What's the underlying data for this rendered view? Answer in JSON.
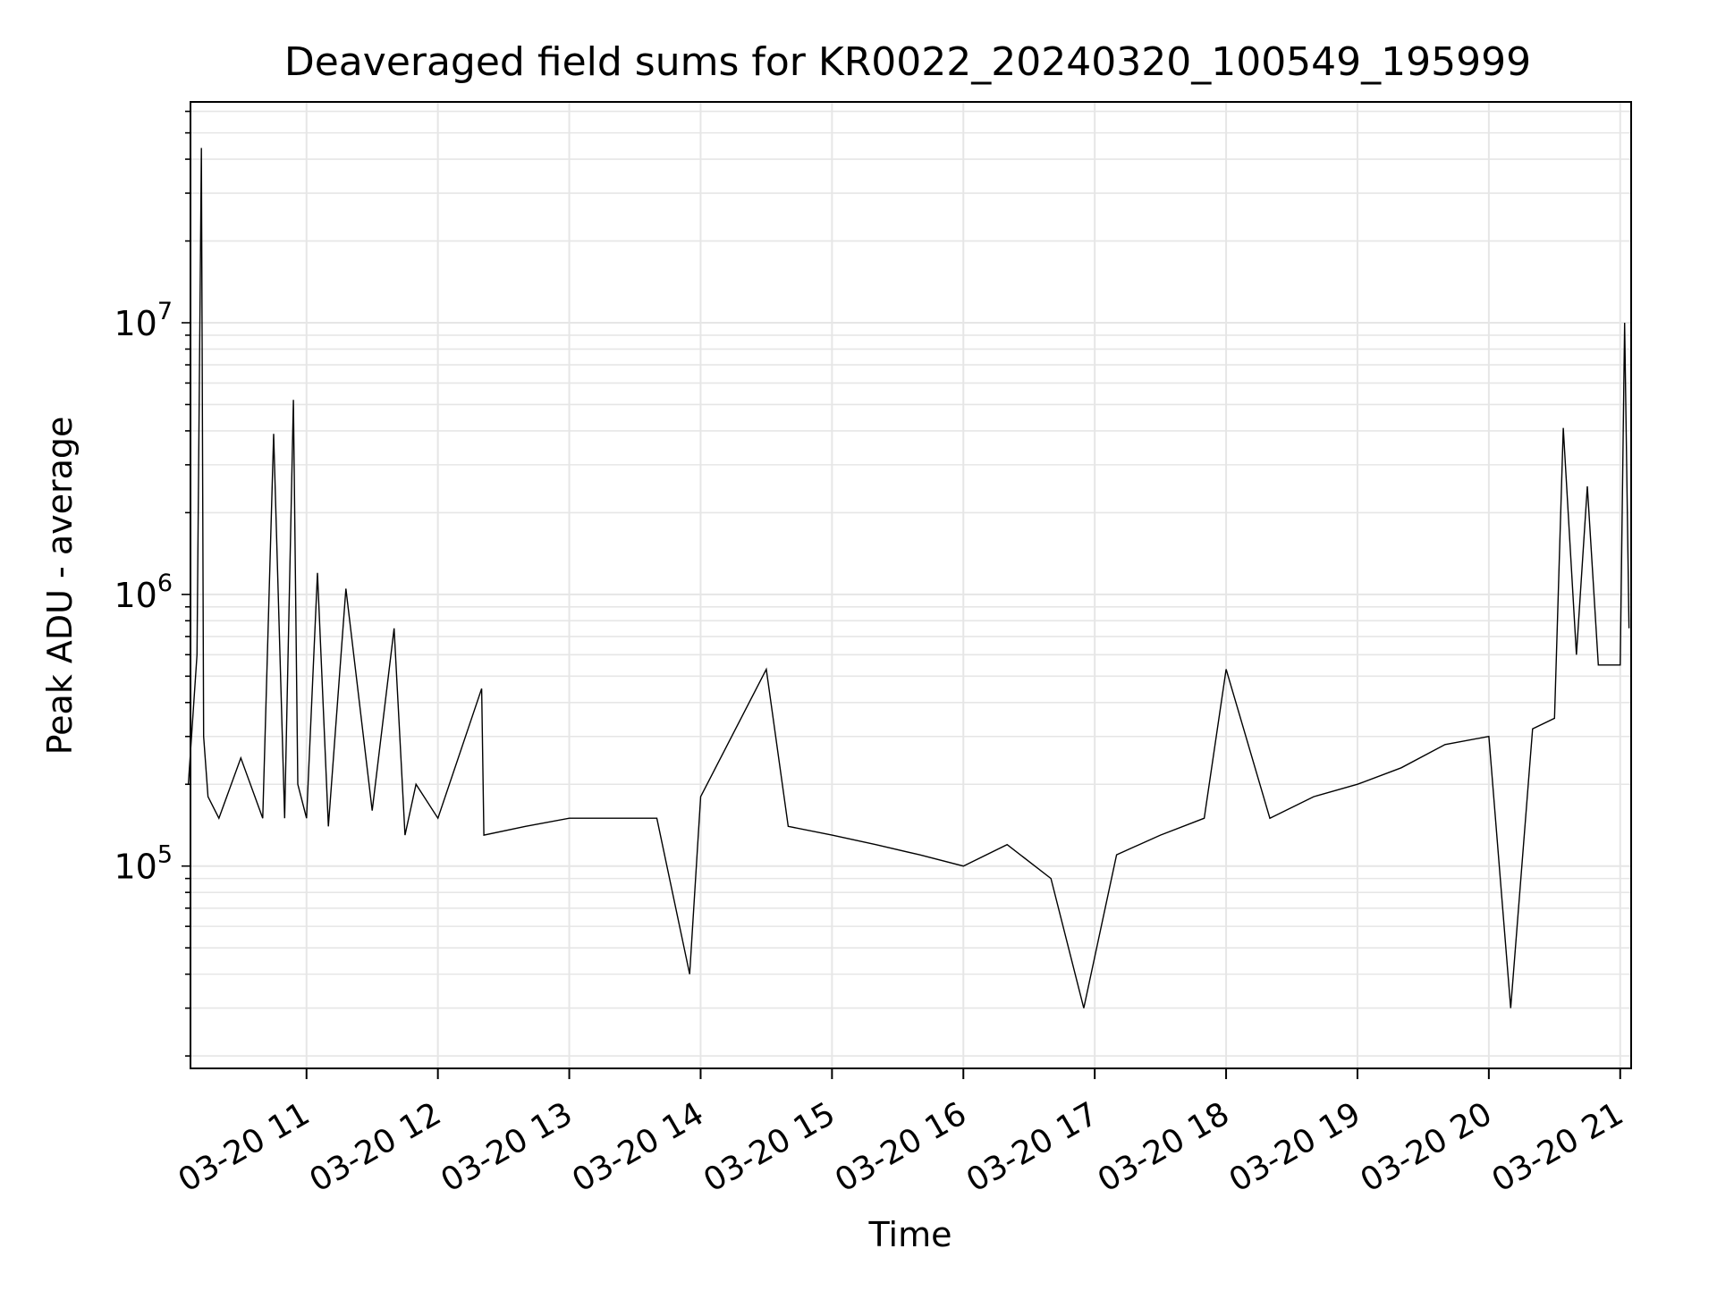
{
  "chart_data": {
    "type": "line",
    "title": "Deaveraged field sums for KR0022_20240320_100549_195999",
    "xlabel": "Time",
    "ylabel": "Peak ADU - average",
    "y_scale": "log",
    "xlim": [
      "2024-03-20T10:07",
      "2024-03-20T21:05"
    ],
    "ylim": [
      18000,
      65000000
    ],
    "x_tick_labels": [
      "03-20 11",
      "03-20 12",
      "03-20 13",
      "03-20 14",
      "03-20 15",
      "03-20 16",
      "03-20 17",
      "03-20 18",
      "03-20 19",
      "03-20 20",
      "03-20 21"
    ],
    "y_tick_labels": [
      {
        "value": 100000,
        "base": "10",
        "exp": "5"
      },
      {
        "value": 1000000,
        "base": "10",
        "exp": "6"
      },
      {
        "value": 10000000,
        "base": "10",
        "exp": "7"
      }
    ],
    "grid": true,
    "line_color": "#000000",
    "series": [
      {
        "x": [
          "2024-03-20T10:06",
          "2024-03-20T10:10",
          "2024-03-20T10:12",
          "2024-03-20T10:13",
          "2024-03-20T10:15",
          "2024-03-20T10:20",
          "2024-03-20T10:30",
          "2024-03-20T10:40",
          "2024-03-20T10:45",
          "2024-03-20T10:50",
          "2024-03-20T10:54",
          "2024-03-20T10:56",
          "2024-03-20T11:00",
          "2024-03-20T11:05",
          "2024-03-20T11:10",
          "2024-03-20T11:18",
          "2024-03-20T11:30",
          "2024-03-20T11:40",
          "2024-03-20T11:45",
          "2024-03-20T11:50",
          "2024-03-20T12:00",
          "2024-03-20T12:20",
          "2024-03-20T12:21",
          "2024-03-20T12:40",
          "2024-03-20T13:00",
          "2024-03-20T13:20",
          "2024-03-20T13:40",
          "2024-03-20T13:55",
          "2024-03-20T14:00",
          "2024-03-20T14:30",
          "2024-03-20T14:40",
          "2024-03-20T15:00",
          "2024-03-20T15:20",
          "2024-03-20T15:40",
          "2024-03-20T16:00",
          "2024-03-20T16:20",
          "2024-03-20T16:40",
          "2024-03-20T16:55",
          "2024-03-20T17:10",
          "2024-03-20T17:30",
          "2024-03-20T17:50",
          "2024-03-20T18:00",
          "2024-03-20T18:20",
          "2024-03-20T18:40",
          "2024-03-20T19:00",
          "2024-03-20T19:20",
          "2024-03-20T19:40",
          "2024-03-20T20:00",
          "2024-03-20T20:10",
          "2024-03-20T20:20",
          "2024-03-20T20:30",
          "2024-03-20T20:34",
          "2024-03-20T20:40",
          "2024-03-20T20:45",
          "2024-03-20T20:50",
          "2024-03-20T21:00",
          "2024-03-20T21:02",
          "2024-03-20T21:04"
        ],
        "y": [
          200000,
          600000,
          44000000,
          300000,
          180000,
          150000,
          250000,
          150000,
          3900000,
          150000,
          5200000,
          200000,
          150000,
          1200000,
          140000,
          1050000,
          160000,
          750000,
          130000,
          200000,
          150000,
          450000,
          130000,
          140000,
          150000,
          150000,
          150000,
          40000,
          180000,
          530000,
          140000,
          130000,
          120000,
          110000,
          100000,
          120000,
          90000,
          30000,
          110000,
          130000,
          150000,
          530000,
          150000,
          180000,
          200000,
          230000,
          280000,
          300000,
          30000,
          320000,
          350000,
          4100000,
          600000,
          2500000,
          550000,
          550000,
          10000000,
          750000
        ]
      }
    ]
  }
}
